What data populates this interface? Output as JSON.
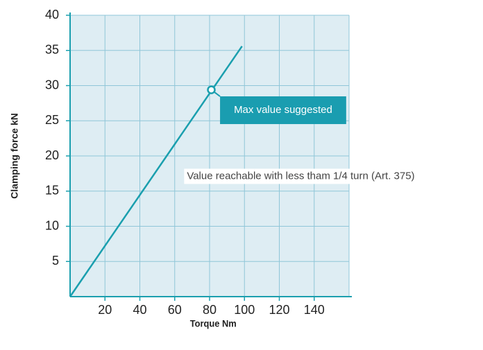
{
  "chart_data": {
    "type": "line",
    "x_label": "Torque Nm",
    "y_label": "Clamping force kN",
    "xlim": [
      0,
      160
    ],
    "ylim": [
      0,
      40
    ],
    "xticks": [
      20,
      40,
      60,
      80,
      100,
      120,
      140
    ],
    "yticks": [
      5,
      10,
      15,
      20,
      25,
      30,
      35,
      40
    ],
    "grid": true,
    "background": "#deedf3",
    "grid_color": "#8fc6d8",
    "axis_color": "#1a9fae",
    "series": [
      {
        "color": "#1a9fae",
        "x": [
          0,
          98.6
        ],
        "values": [
          0,
          35.6
        ]
      }
    ],
    "marker": {
      "x": 81,
      "y": 29.4
    },
    "annotations": [
      {
        "text": "Max value suggested",
        "x": 86,
        "y": 26.5,
        "boxed": true,
        "box_color": "#1a9db0"
      },
      {
        "text": "Value reachable with less tham 1/4 turn (Art. 375)",
        "x": 67,
        "y": 17.1,
        "boxed": false
      }
    ]
  }
}
